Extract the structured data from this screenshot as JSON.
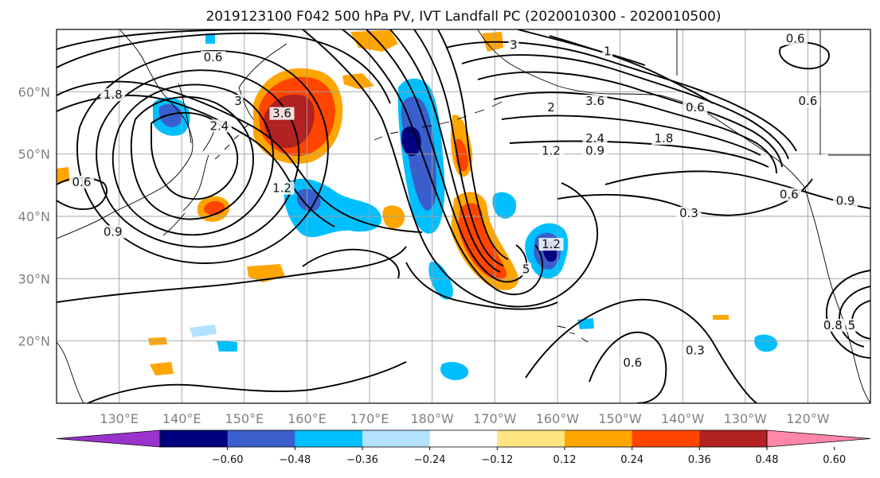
{
  "figure": {
    "title": "2019123100 F042 500 hPa PV, IVT Landfall PC (2020010300 - 2020010500)"
  },
  "map": {
    "lon_range": [
      120,
      250
    ],
    "lat_range": [
      10,
      70
    ],
    "gridlines": true,
    "lon_ticks": [
      {
        "lon": 130,
        "label": "130°E"
      },
      {
        "lon": 140,
        "label": "140°E"
      },
      {
        "lon": 150,
        "label": "150°E"
      },
      {
        "lon": 160,
        "label": "160°E"
      },
      {
        "lon": 170,
        "label": "170°E"
      },
      {
        "lon": 180,
        "label": "180°W"
      },
      {
        "lon": 190,
        "label": "170°W"
      },
      {
        "lon": 200,
        "label": "160°W"
      },
      {
        "lon": 210,
        "label": "150°W"
      },
      {
        "lon": 220,
        "label": "140°W"
      },
      {
        "lon": 230,
        "label": "130°W"
      },
      {
        "lon": 240,
        "label": "120°W"
      }
    ],
    "lat_ticks": [
      {
        "lat": 20,
        "label": "20°N"
      },
      {
        "lat": 30,
        "label": "30°N"
      },
      {
        "lat": 40,
        "label": "40°N"
      },
      {
        "lat": 50,
        "label": "50°N"
      },
      {
        "lat": 60,
        "label": "60°N"
      }
    ]
  },
  "colorbar": {
    "ticks": [
      "−0.60",
      "−0.48",
      "−0.36",
      "−0.24",
      "−0.12",
      "0.12",
      "0.24",
      "0.36",
      "0.48",
      "0.60"
    ],
    "colors": [
      "#9933cc",
      "#000080",
      "#3a5fcd",
      "#00bfff",
      "#b2e2ff",
      "#ffffff",
      "#ffe680",
      "#ffa500",
      "#ff4500",
      "#b22222",
      "#ff88aa"
    ],
    "extend": "both"
  },
  "contour_labels": [
    {
      "text": "0.6",
      "lon": 145,
      "lat": 65
    },
    {
      "text": "1.8",
      "lon": 129,
      "lat": 59
    },
    {
      "text": "2.4",
      "lon": 146,
      "lat": 54
    },
    {
      "text": "3",
      "lon": 149,
      "lat": 58
    },
    {
      "text": "3.6",
      "lon": 156,
      "lat": 56
    },
    {
      "text": "3",
      "lon": 193,
      "lat": 67
    },
    {
      "text": "3.6",
      "lon": 206,
      "lat": 58
    },
    {
      "text": "2",
      "lon": 199,
      "lat": 57
    },
    {
      "text": "2.4",
      "lon": 206,
      "lat": 52
    },
    {
      "text": "1.8",
      "lon": 217,
      "lat": 52
    },
    {
      "text": "1.2",
      "lon": 199,
      "lat": 50
    },
    {
      "text": "0.9",
      "lon": 206,
      "lat": 50
    },
    {
      "text": "0.6",
      "lon": 238,
      "lat": 68
    },
    {
      "text": "0.6",
      "lon": 240,
      "lat": 58
    },
    {
      "text": "0.6",
      "lon": 222,
      "lat": 57
    },
    {
      "text": "0.9",
      "lon": 246,
      "lat": 42
    },
    {
      "text": "0.6",
      "lon": 237,
      "lat": 43
    },
    {
      "text": "0.3",
      "lon": 221,
      "lat": 40
    },
    {
      "text": "1.2",
      "lon": 156,
      "lat": 44
    },
    {
      "text": "0.6",
      "lon": 124,
      "lat": 45
    },
    {
      "text": "1.2",
      "lon": 199,
      "lat": 35
    },
    {
      "text": "5",
      "lon": 195,
      "lat": 31
    },
    {
      "text": "0.6",
      "lon": 212,
      "lat": 16
    },
    {
      "text": "0.3",
      "lon": 222,
      "lat": 18
    },
    {
      "text": "1",
      "lon": 208,
      "lat": 66
    },
    {
      "text": "0.8",
      "lon": 244,
      "lat": 22
    },
    {
      "text": "5",
      "lon": 247,
      "lat": 22
    },
    {
      "text": "0.9",
      "lon": 129,
      "lat": 37
    }
  ]
}
